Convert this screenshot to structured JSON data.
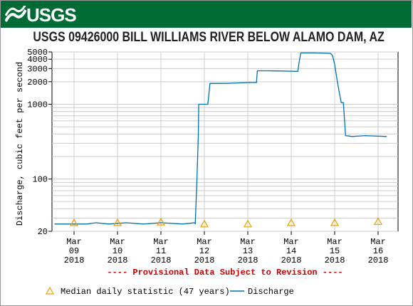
{
  "header": {
    "logo_text": "USGS",
    "title": "USGS 09426000 BILL WILLIAMS RIVER BELOW ALAMO DAM, AZ"
  },
  "colors": {
    "banner": "#006b35",
    "discharge_line": "#0070b0",
    "median_marker": "#e8a000",
    "provisional_text": "#cc0000",
    "grid": "#cccccc"
  },
  "chart_data": {
    "type": "line",
    "ylabel": "Discharge, cubic feet per second",
    "yscale": "log",
    "ylim": [
      20,
      5000
    ],
    "xlim": [
      0,
      7.7
    ],
    "y_ticks": [
      20,
      100,
      1000,
      2000,
      3000,
      4000,
      5000
    ],
    "y_tick_labels": [
      "20",
      "100",
      "1000",
      "2000",
      "3000",
      "4000",
      "5000"
    ],
    "x_ticks": [
      {
        "x": 0,
        "label": [
          "Mar",
          "09",
          "2018"
        ]
      },
      {
        "x": 1,
        "label": [
          "Mar",
          "10",
          "2018"
        ]
      },
      {
        "x": 2,
        "label": [
          "Mar",
          "11",
          "2018"
        ]
      },
      {
        "x": 3,
        "label": [
          "Mar",
          "12",
          "2018"
        ]
      },
      {
        "x": 4,
        "label": [
          "Mar",
          "13",
          "2018"
        ]
      },
      {
        "x": 5,
        "label": [
          "Mar",
          "14",
          "2018"
        ]
      },
      {
        "x": 6,
        "label": [
          "Mar",
          "15",
          "2018"
        ]
      },
      {
        "x": 7,
        "label": [
          "Mar",
          "16",
          "2018"
        ]
      }
    ],
    "grid": true,
    "series": [
      {
        "name": "Discharge",
        "x": [
          -0.45,
          0.3,
          0.5,
          0.8,
          1.2,
          1.6,
          2.0,
          2.5,
          2.78,
          2.79,
          2.83,
          2.86,
          2.87,
          2.9,
          3.08,
          3.13,
          3.5,
          4.0,
          4.2,
          4.22,
          4.5,
          4.8,
          5.15,
          5.18,
          5.22,
          5.3,
          5.5,
          5.8,
          5.9,
          5.95,
          6.0,
          6.05,
          6.1,
          6.15,
          6.2,
          6.25,
          6.4,
          6.7,
          7.2
        ],
        "values": [
          25,
          25,
          26,
          25,
          26,
          25,
          26,
          25,
          26,
          25,
          100,
          380,
          1000,
          1000,
          1000,
          1900,
          1900,
          1950,
          1950,
          2800,
          2800,
          2780,
          2750,
          3600,
          4850,
          4850,
          4850,
          4820,
          4800,
          4500,
          3400,
          2200,
          1500,
          1050,
          1050,
          380,
          370,
          380,
          370
        ]
      }
    ],
    "median": {
      "name": "Median daily statistic (47 years)",
      "x": [
        0,
        1,
        2,
        3,
        4,
        5,
        6,
        7
      ],
      "values": [
        26,
        26,
        26.5,
        25,
        25,
        26,
        26,
        27
      ]
    }
  },
  "provisional_note": "---- Provisional Data Subject to Revision ----",
  "legend": {
    "median_label": "Median daily statistic (47 years)",
    "discharge_label": "Discharge"
  }
}
